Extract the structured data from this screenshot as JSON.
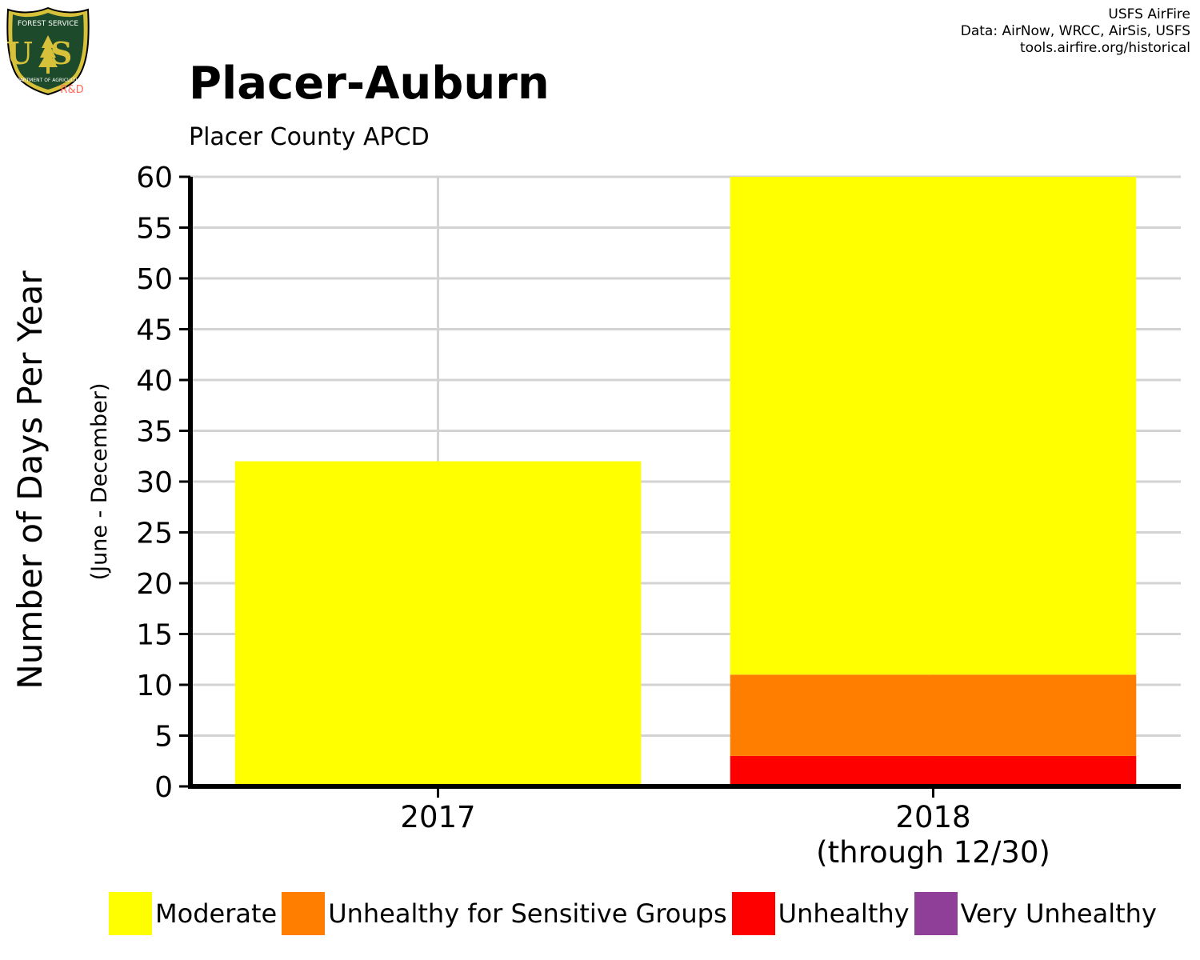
{
  "logo": {
    "top_text": "FOREST SERVICE",
    "letters": "US",
    "bottom_text": "DEPARTMENT OF AGRICULTURE",
    "tag": "R&D"
  },
  "credits": {
    "line1": "USFS AirFire",
    "line2": "Data: AirNow, WRCC, AirSis, USFS",
    "line3": "tools.airfire.org/historical"
  },
  "chart_data": {
    "type": "bar",
    "stacked": true,
    "title": "Placer-Auburn",
    "subtitle": "Placer County APCD",
    "ylabel": "Number of Days Per Year",
    "ylabel_sub": "(June - December)",
    "xlabel": "",
    "categories": [
      {
        "line1": "2017",
        "line2": ""
      },
      {
        "line1": "2018",
        "line2": "(through 12/30)"
      }
    ],
    "ylim": [
      0,
      60
    ],
    "yticks": [
      0,
      5,
      10,
      15,
      20,
      25,
      30,
      35,
      40,
      45,
      50,
      55,
      60
    ],
    "grid": true,
    "legend_position": "bottom",
    "series": [
      {
        "name": "Unhealthy",
        "color": "#ff0000",
        "values": [
          0,
          3
        ]
      },
      {
        "name": "Unhealthy for Sensitive Groups",
        "color": "#ff7e00",
        "values": [
          0,
          8
        ]
      },
      {
        "name": "Moderate",
        "color": "#ffff00",
        "values": [
          32,
          49
        ]
      },
      {
        "name": "Very Unhealthy",
        "color": "#8f3f97",
        "values": [
          0,
          0
        ]
      }
    ],
    "legend": [
      {
        "name": "Moderate",
        "color": "#ffff00"
      },
      {
        "name": "Unhealthy for Sensitive Groups",
        "color": "#ff7e00"
      },
      {
        "name": "Unhealthy",
        "color": "#ff0000"
      },
      {
        "name": "Very Unhealthy",
        "color": "#8f3f97"
      }
    ]
  }
}
